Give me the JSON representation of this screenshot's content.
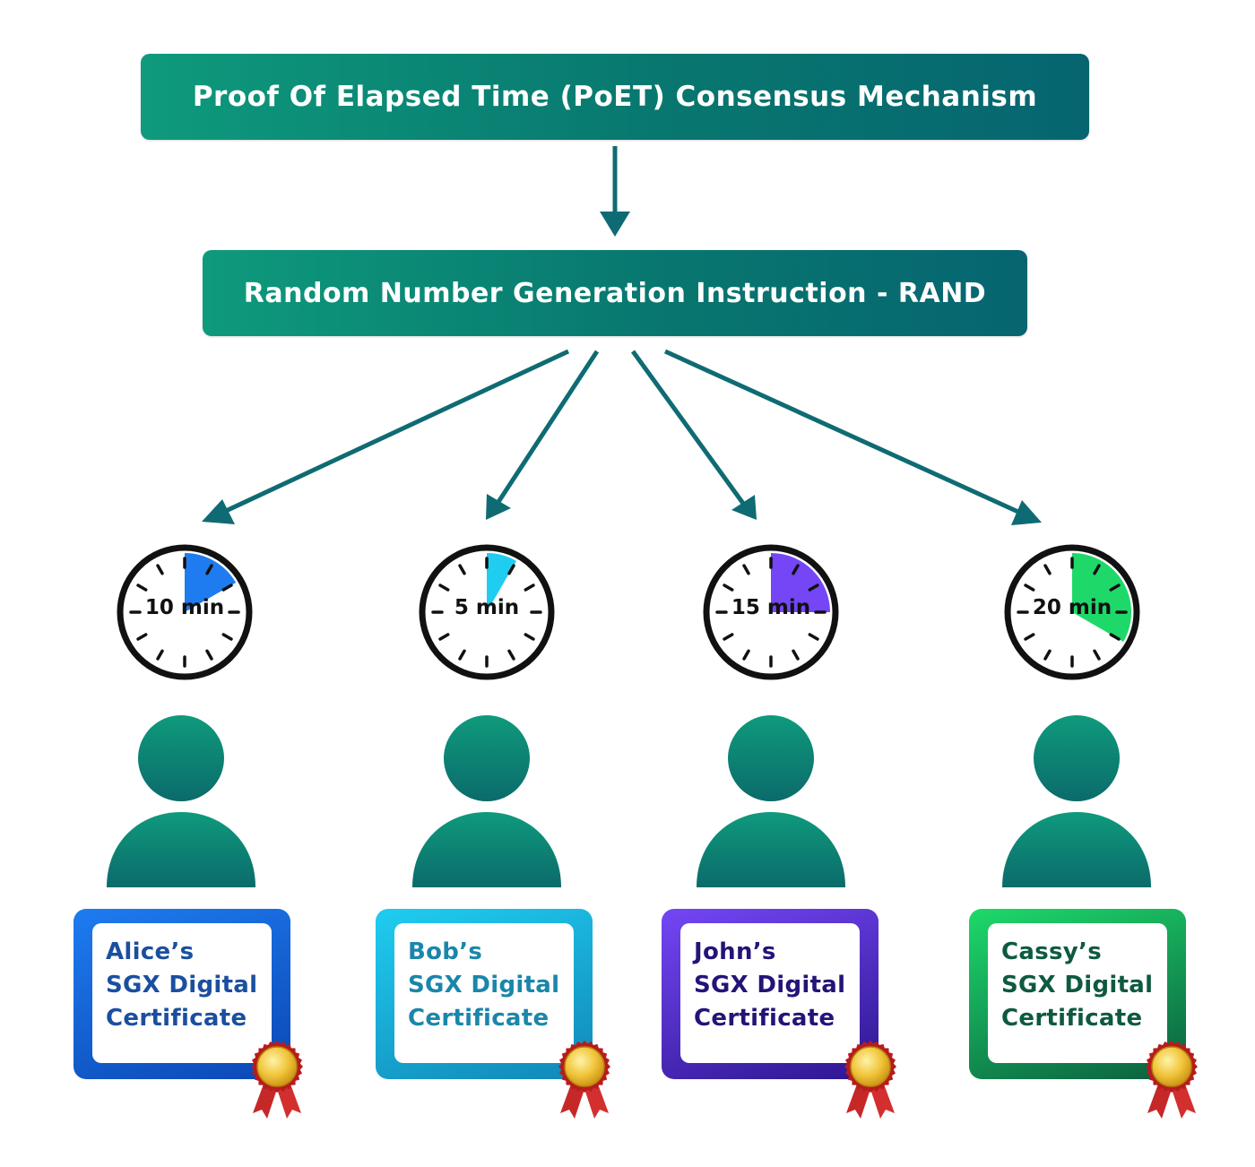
{
  "diagram": {
    "title": "Proof Of Elapsed Time (PoET) Consensus Mechanism",
    "rand_step": "Random Number Generation Instruction - RAND",
    "participants": [
      {
        "name": "Alice’s",
        "cert_line2": "SGX Digital",
        "cert_line3": "Certificate",
        "wait_label": "10 min",
        "wait_minutes": 10,
        "accent": "#1e7cf0",
        "accent_dark": "#0b47b5",
        "text_color": "#1a4fa0"
      },
      {
        "name": "Bob’s",
        "cert_line2": "SGX Digital",
        "cert_line3": "Certificate",
        "wait_label": "5 min",
        "wait_minutes": 5,
        "accent": "#1fcdf0",
        "accent_dark": "#1187b8",
        "text_color": "#1a86aa"
      },
      {
        "name": "John’s",
        "cert_line2": "SGX Digital",
        "cert_line3": "Certificate",
        "wait_label": "15 min",
        "wait_minutes": 15,
        "accent": "#7446f5",
        "accent_dark": "#2d1690",
        "text_color": "#231478"
      },
      {
        "name": "Cassy’s",
        "cert_line2": "SGX Digital",
        "cert_line3": "Certificate",
        "wait_label": "20 min",
        "wait_minutes": 20,
        "accent": "#1ed96a",
        "accent_dark": "#0b5e3f",
        "text_color": "#0e5a40"
      }
    ]
  },
  "colors": {
    "arrow": "#0f6b73",
    "avatar": "#0f8f78",
    "avatar_dark": "#0b6b6b"
  }
}
